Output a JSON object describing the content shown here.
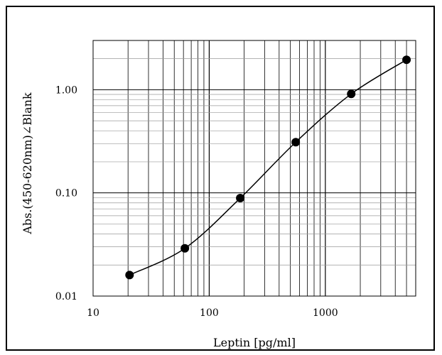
{
  "chart_data": {
    "type": "scatter",
    "title": "",
    "xlabel": "Leptin [pg/ml]",
    "ylabel": "Abs.(450-620nm)∠Blank",
    "x_scale": "log",
    "y_scale": "log",
    "xlim": [
      10,
      6000
    ],
    "ylim": [
      0.01,
      3
    ],
    "x_ticks": [
      "10",
      "100",
      "1000"
    ],
    "y_ticks": [
      "0.01",
      "0.10",
      "1.00"
    ],
    "grid": true,
    "legend": "none",
    "series": [
      {
        "x": [
          20.6,
          61.7,
          185,
          556,
          1670,
          5000
        ],
        "y": [
          0.016,
          0.029,
          0.089,
          0.31,
          0.91,
          1.95
        ],
        "marker": "circle",
        "line": "smooth"
      }
    ],
    "colors": {
      "marker": "#000000",
      "line": "#000000",
      "grid": "#000000"
    }
  }
}
